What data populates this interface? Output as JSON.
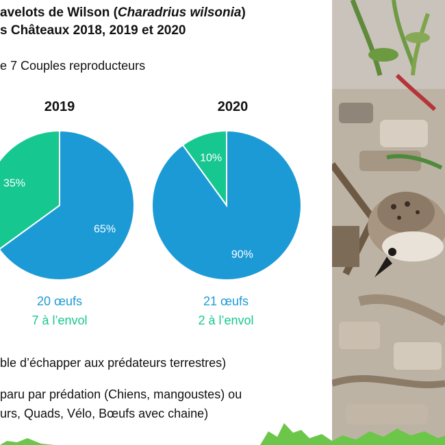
{
  "header": {
    "title_line1_prefix": "avelots de Wilson (",
    "title_line1_species": "Charadrius wilsonia",
    "title_line1_suffix": ")",
    "title_line2": "s Châteaux 2018, 2019 et 2020",
    "subtitle": "e 7 Couples reproducteurs"
  },
  "charts": [
    {
      "year": "2019",
      "eggs_label": "20 œufs",
      "fledged_label": "7 à l’envol"
    },
    {
      "year": "2020",
      "eggs_label": "21 œufs",
      "fledged_label": "2 à l’envol"
    }
  ],
  "notes": {
    "line1": "ble d’échapper aux prédateurs terrestres)",
    "line2": "paru par prédation (Chiens, mangoustes) ou",
    "line3": "urs, Quads, Vélo, Bœufs avec chaine)"
  },
  "colors": {
    "blue": "#1c9ad6",
    "green": "#17c790"
  },
  "chart_data": [
    {
      "type": "pie",
      "title": "2019",
      "categories": [
        "",
        ""
      ],
      "values": [
        65,
        35
      ],
      "labels": [
        "65%",
        "35%"
      ],
      "colors": [
        "#1c9ad6",
        "#17c790"
      ]
    },
    {
      "type": "pie",
      "title": "2020",
      "categories": [
        "",
        ""
      ],
      "values": [
        90,
        10
      ],
      "labels": [
        "90%",
        "10%"
      ],
      "colors": [
        "#1c9ad6",
        "#17c790"
      ]
    }
  ]
}
